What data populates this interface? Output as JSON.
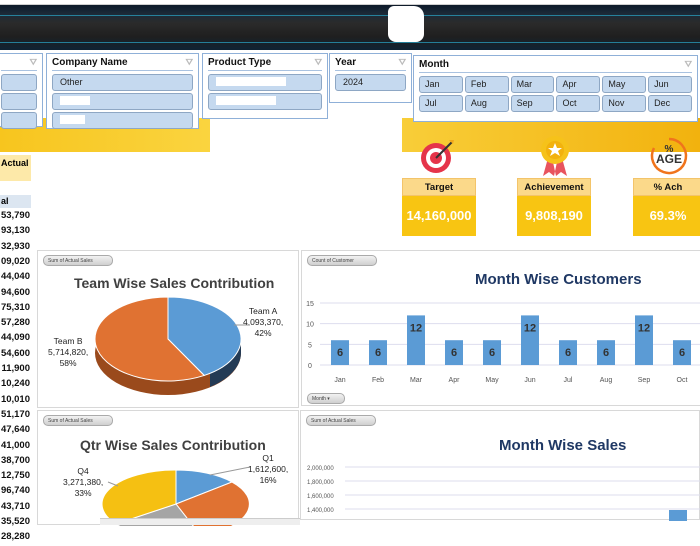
{
  "slicers": {
    "first": {
      "items": [
        "",
        "",
        ""
      ]
    },
    "company": {
      "title": "Company Name",
      "items": [
        "Other",
        "",
        ""
      ]
    },
    "product": {
      "title": "Product Type",
      "items": [
        "",
        ""
      ]
    },
    "year": {
      "title": "Year",
      "items": [
        "2024"
      ]
    },
    "month": {
      "title": "Month",
      "items": [
        "Jan",
        "Feb",
        "Mar",
        "Apr",
        "May",
        "Jun",
        "Jul",
        "Aug",
        "Sep",
        "Oct",
        "Nov",
        "Dec"
      ]
    }
  },
  "sheet": {
    "header_actual": "Actual",
    "col_header": "al",
    "values": [
      "53,790",
      "93,130",
      "32,930",
      "09,020",
      "44,040",
      "94,600",
      "75,310",
      "57,280",
      "44,090",
      "54,600",
      "11,900",
      "10,240",
      "10,010",
      "51,170",
      "47,640",
      "41,000",
      "38,700",
      "12,750",
      "96,740",
      "43,710",
      "35,520",
      "28,280"
    ]
  },
  "kpis": [
    {
      "icon": "target-icon",
      "label": "Target",
      "value": "14,160,000"
    },
    {
      "icon": "award-medal-icon",
      "label": "Achievement",
      "value": "9,808,190"
    },
    {
      "icon": "percentage-icon",
      "label": "% Ach",
      "value": "69.3%",
      "icon_text": "%\nAGE"
    }
  ],
  "colors": {
    "accent": "#f8c512",
    "bar": "#5b9bd5",
    "teamA": "#5b9bd5",
    "teamB": "#e07232",
    "q4": "#f5c012",
    "q3": "#a5a5a5"
  },
  "chart_data": [
    {
      "type": "pie",
      "title": "Team Wise Sales Contribution",
      "field_button": "Sum of Actual Sales",
      "slices": [
        {
          "name": "Team A",
          "value": 4093370,
          "value_label": "4,093,370,",
          "pct": "42%"
        },
        {
          "name": "Team B",
          "value": 5714820,
          "value_label": "5,714,820,",
          "pct": "58%"
        }
      ]
    },
    {
      "type": "bar",
      "title": "Month Wise Customers",
      "field_button": "Count of Customer",
      "axis_button": "Month",
      "categories": [
        "Jan",
        "Feb",
        "Mar",
        "Apr",
        "May",
        "Jun",
        "Jul",
        "Aug",
        "Sep",
        "Oct"
      ],
      "values": [
        6,
        6,
        12,
        6,
        6,
        12,
        6,
        6,
        12,
        6
      ],
      "ylim": [
        0,
        15
      ],
      "yticks": [
        "0",
        "5",
        "10",
        "15"
      ],
      "grid": true
    },
    {
      "type": "pie",
      "title": "Qtr Wise Sales Contribution",
      "field_button": "Sum of Actual Sales",
      "slices": [
        {
          "name": "Q1",
          "value": 1612600,
          "value_label": "1,612,600,",
          "pct": "16%"
        },
        {
          "name": "Q4",
          "value": 3271380,
          "value_label": "3,271,380,",
          "pct": "33%"
        }
      ]
    },
    {
      "type": "bar",
      "title": "Month Wise Sales",
      "field_button": "Sum of Actual Sales",
      "yticks": [
        "2,000,000",
        "1,800,000",
        "1,600,000",
        "1,400,000"
      ],
      "grid": true
    }
  ]
}
